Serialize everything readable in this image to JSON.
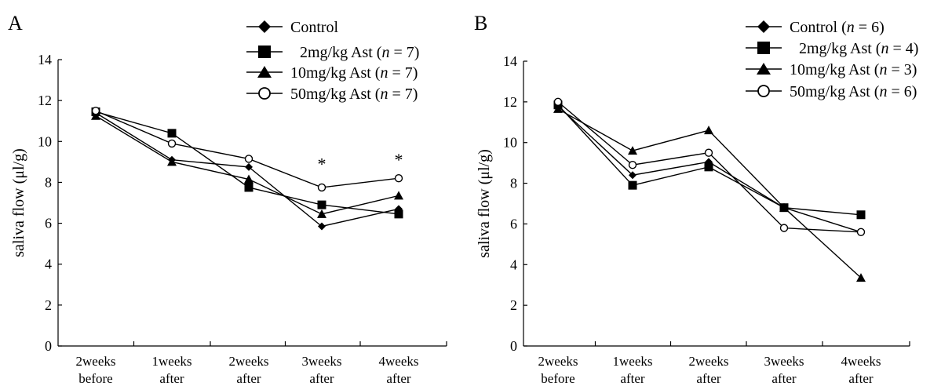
{
  "chart_data": [
    {
      "panel_label": "A",
      "type": "line",
      "ylabel": "saliva flow (μl/g)",
      "ylim": [
        0,
        14
      ],
      "yticks": [
        0,
        2,
        4,
        6,
        8,
        10,
        12,
        14
      ],
      "categories": [
        [
          "2weeks",
          "before"
        ],
        [
          "1weeks",
          "after"
        ],
        [
          "2weeks",
          "after"
        ],
        [
          "3weeks",
          "after"
        ],
        [
          "4weeks",
          "after"
        ]
      ],
      "series": [
        {
          "name": "Control",
          "n": "",
          "marker": "diamond",
          "values": [
            11.4,
            9.1,
            8.75,
            5.85,
            6.7
          ]
        },
        {
          "name": "2mg/kg Ast",
          "n": "7",
          "marker": "square",
          "values": [
            11.45,
            10.4,
            7.75,
            6.9,
            6.45
          ]
        },
        {
          "name": "10mg/kg Ast",
          "n": "7",
          "marker": "triangle",
          "values": [
            11.25,
            9.0,
            8.15,
            6.45,
            7.35
          ]
        },
        {
          "name": "50mg/kg Ast",
          "n": "7",
          "marker": "circle",
          "values": [
            11.5,
            9.9,
            9.15,
            7.75,
            8.2
          ]
        }
      ],
      "annotations": [
        {
          "text": "*",
          "category_index": 3,
          "y": 9.0
        },
        {
          "text": "*",
          "category_index": 4,
          "y": 9.2
        }
      ]
    },
    {
      "panel_label": "B",
      "type": "line",
      "ylabel": "saliva flow (μl/g)",
      "ylim": [
        0,
        14
      ],
      "yticks": [
        0,
        2,
        4,
        6,
        8,
        10,
        12,
        14
      ],
      "categories": [
        [
          "2weeks",
          "before"
        ],
        [
          "1weeks",
          "after"
        ],
        [
          "2weeks",
          "after"
        ],
        [
          "3weeks",
          "after"
        ],
        [
          "4weeks",
          "after"
        ]
      ],
      "series": [
        {
          "name": "Control",
          "n": "6",
          "marker": "diamond",
          "values": [
            11.8,
            8.4,
            9.05,
            6.8,
            5.6
          ]
        },
        {
          "name": "2mg/kg Ast",
          "n": "4",
          "marker": "square",
          "values": [
            11.85,
            7.9,
            8.8,
            6.8,
            6.45
          ]
        },
        {
          "name": "10mg/kg Ast",
          "n": "3",
          "marker": "triangle",
          "values": [
            11.65,
            9.6,
            10.6,
            6.8,
            3.35
          ]
        },
        {
          "name": "50mg/kg Ast",
          "n": "6",
          "marker": "circle",
          "values": [
            12.0,
            8.9,
            9.5,
            5.8,
            5.6
          ]
        }
      ],
      "annotations": []
    }
  ]
}
